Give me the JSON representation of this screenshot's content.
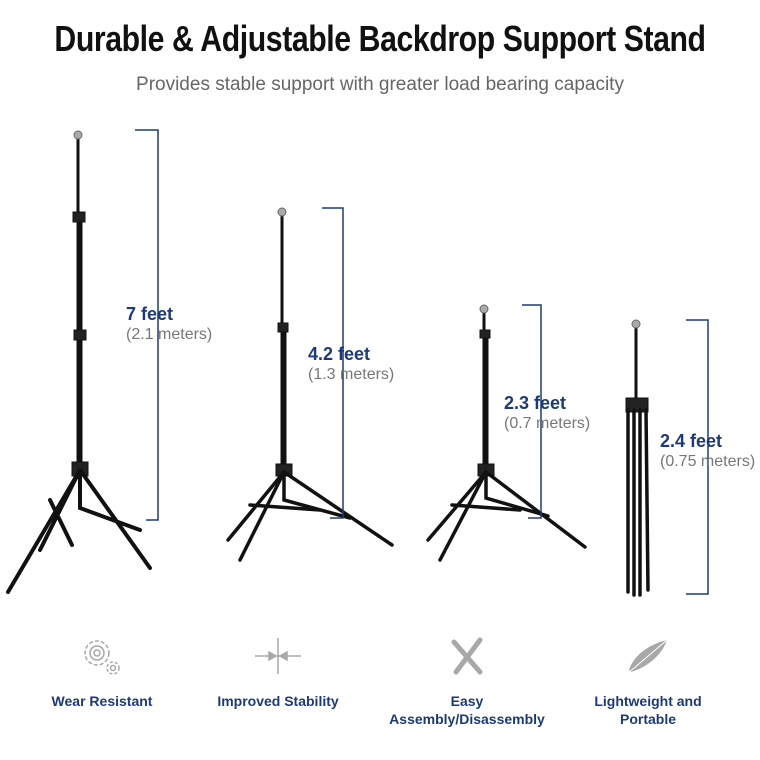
{
  "header": {
    "title": "Durable & Adjustable Backdrop Support Stand",
    "subtitle": "Provides stable support with greater load bearing capacity"
  },
  "colors": {
    "accent": "#1d3a78",
    "icon": "#a8a8a8",
    "stand": "#111111"
  },
  "stands": [
    {
      "height": "7 feet",
      "metric": "(2.1 meters)"
    },
    {
      "height": "4.2 feet",
      "metric": "(1.3 meters)"
    },
    {
      "height": "2.3 feet",
      "metric": "(0.7 meters)"
    },
    {
      "height": "2.4 feet",
      "metric": "(0.75 meters)"
    }
  ],
  "features": [
    {
      "icon": "gears-icon",
      "label": "Wear Resistant"
    },
    {
      "icon": "stability-arrows-icon",
      "label": "Improved Stability"
    },
    {
      "icon": "wrench-screwdriver-icon",
      "label": "Easy Assembly/Disassembly"
    },
    {
      "icon": "feather-icon",
      "label": "Lightweight and Portable"
    }
  ]
}
